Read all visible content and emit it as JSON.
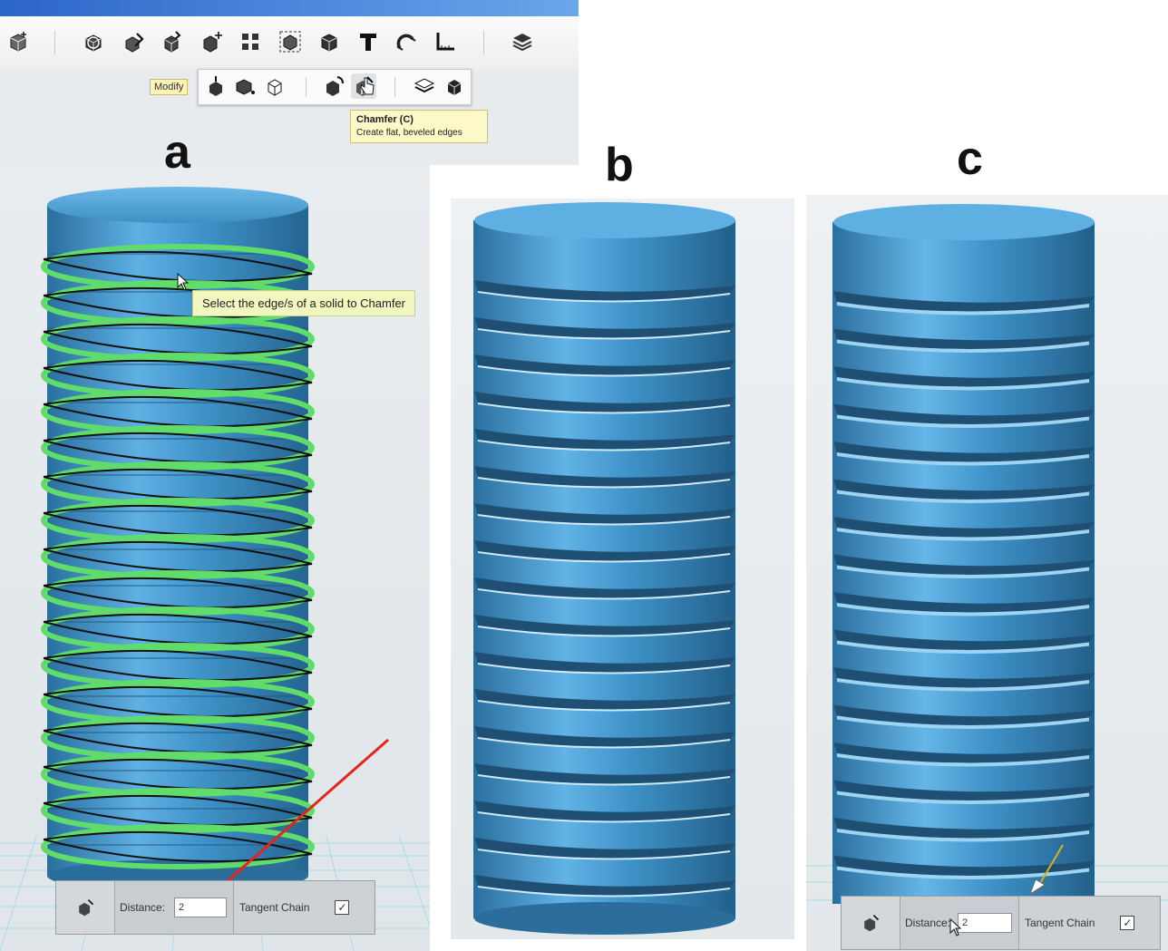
{
  "toolbar": {
    "icons": [
      "new-primitive-icon",
      "sketch-icon",
      "construct-icon",
      "modify-icon",
      "transform-icon",
      "pattern-icon",
      "grouping-icon",
      "combine-icon",
      "text-icon",
      "snap-icon",
      "measure-icon",
      "material-icon"
    ]
  },
  "subtoolbar": {
    "modify_label": "Modify",
    "icons": [
      "press-pull-icon",
      "tweak-icon",
      "smart-extrude-icon",
      "fillet-icon",
      "chamfer-icon",
      "split-face-icon",
      "shell-icon"
    ]
  },
  "tooltip_chamfer": {
    "title": "Chamfer (C)",
    "description": "Create flat, beveled edges"
  },
  "panel_labels": {
    "a": "a",
    "b": "b",
    "c": "c"
  },
  "select_hint": "Select the edge/s of a solid to Chamfer",
  "chamfer_panel_a": {
    "distance_label": "Distance:",
    "distance_value": "2",
    "tangent_label": "Tangent Chain",
    "tangent_checked": true
  },
  "chamfer_panel_c": {
    "distance_label": "Distance:",
    "distance_value": "2",
    "tangent_label": "Tangent Chain",
    "tangent_checked": true
  },
  "colors": {
    "cylinder": "#3e92c8",
    "highlight": "#5fdc6a",
    "arrow": "#e8231e",
    "grid": "#93d6e6"
  }
}
